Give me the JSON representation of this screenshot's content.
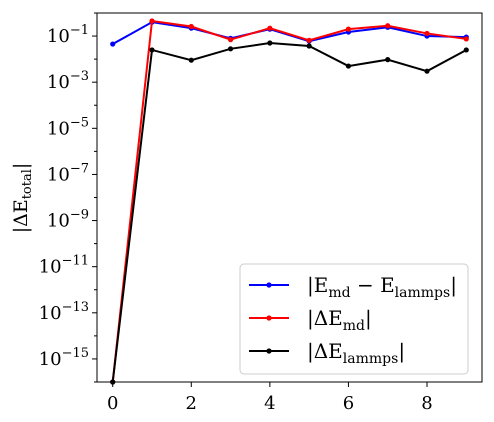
{
  "chart_data": {
    "type": "line",
    "title": "",
    "xlabel": "",
    "ylabel": "|ΔE",
    "ylabel_sub": "total",
    "ylabel_close": "|",
    "yscale": "log",
    "xlim": [
      -0.4,
      9.4
    ],
    "ylim": [
      1e-16,
      1
    ],
    "x_ticks": [
      0,
      2,
      4,
      6,
      8
    ],
    "x_tick_labels": [
      "0",
      "2",
      "4",
      "6",
      "8"
    ],
    "y_ticks": [
      -1,
      -3,
      -5,
      -7,
      -9,
      -11,
      -13,
      -15
    ],
    "y_tick_labels": [
      {
        "base": "10",
        "exp": "−1"
      },
      {
        "base": "10",
        "exp": "−3"
      },
      {
        "base": "10",
        "exp": "−5"
      },
      {
        "base": "10",
        "exp": "−7"
      },
      {
        "base": "10",
        "exp": "−9"
      },
      {
        "base": "10",
        "exp": "−11"
      },
      {
        "base": "10",
        "exp": "−13"
      },
      {
        "base": "10",
        "exp": "−15"
      }
    ],
    "grid": false,
    "legend_position": "lower-right",
    "x": [
      0,
      1,
      2,
      3,
      4,
      5,
      6,
      7,
      8,
      9
    ],
    "series": [
      {
        "label_main": "|E",
        "label_sub": "md",
        "label_mid": " − E",
        "label_sub2": "lammps",
        "label_end": "|",
        "color": "#0000ff",
        "values": [
          0.045,
          0.4,
          0.22,
          0.08,
          0.2,
          0.06,
          0.15,
          0.24,
          0.1,
          0.09
        ]
      },
      {
        "label_main": "|ΔE",
        "label_sub": "md",
        "label_mid": "",
        "label_sub2": "",
        "label_end": "|",
        "color": "#ff0000",
        "values": [
          1e-16,
          0.45,
          0.26,
          0.07,
          0.22,
          0.065,
          0.2,
          0.28,
          0.13,
          0.075
        ]
      },
      {
        "label_main": "|ΔE",
        "label_sub": "lammps",
        "label_mid": "",
        "label_sub2": "",
        "label_end": "|",
        "color": "#000000",
        "values": [
          1e-16,
          0.025,
          0.009,
          0.028,
          0.05,
          0.037,
          0.005,
          0.0095,
          0.003,
          0.025
        ]
      }
    ]
  }
}
